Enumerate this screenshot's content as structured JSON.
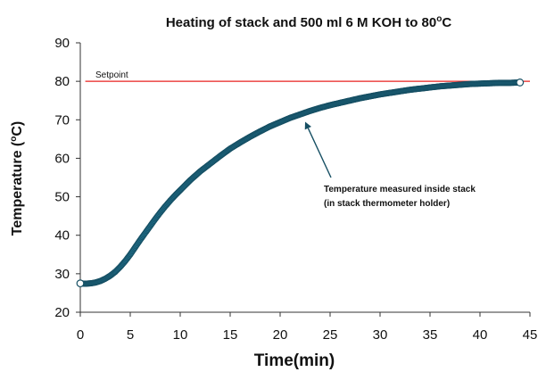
{
  "chart_data": {
    "type": "scatter",
    "title": "Heating of stack and 500 ml 6 M KOH to 80°C",
    "title_parts": {
      "pre": "Heating of stack and 500 ml 6 M KOH to 80",
      "sup": "o",
      "post": "C"
    },
    "xlabel": "Time(min)",
    "ylabel": "Temperature (°C)",
    "ylabel_parts": {
      "pre": "Temperature (",
      "sup": "o",
      "post": "C)"
    },
    "xlim": [
      0,
      45
    ],
    "ylim": [
      20,
      90
    ],
    "xticks": [
      0,
      5,
      10,
      15,
      20,
      25,
      30,
      35,
      40,
      45
    ],
    "yticks": [
      20,
      30,
      40,
      50,
      60,
      70,
      80,
      90
    ],
    "grid": false,
    "colors": {
      "series": "#1f6f8b",
      "series_edge": "#164f63",
      "setpoint": "#e8211f",
      "axis": "#333333"
    },
    "setpoint": {
      "label": "Setpoint",
      "value": 80
    },
    "annotation": {
      "lines": [
        "Temperature measured inside stack",
        " (in stack thermometer holder)"
      ],
      "arrow_target": {
        "x": 22.5,
        "y": 69.5
      }
    },
    "series": [
      {
        "x": [
          0,
          0.5,
          1,
          1.5,
          2,
          2.5,
          3,
          3.5,
          4,
          4.5,
          5,
          5.5,
          6,
          6.5,
          7,
          7.5,
          8,
          8.5,
          9,
          9.5,
          10,
          11,
          12,
          13,
          14,
          15,
          16,
          17,
          18,
          19,
          20,
          21,
          22,
          23,
          24,
          25,
          26,
          27,
          28,
          29,
          30,
          31,
          32,
          33,
          34,
          35,
          36,
          37,
          38,
          39,
          40,
          41,
          42,
          43,
          44
        ],
        "y": [
          27.5,
          27.4,
          27.5,
          27.7,
          28.1,
          28.7,
          29.5,
          30.5,
          31.8,
          33.3,
          35.0,
          36.9,
          38.8,
          40.6,
          42.4,
          44.2,
          45.9,
          47.5,
          49.0,
          50.4,
          51.7,
          54.3,
          56.6,
          58.6,
          60.6,
          62.5,
          64.1,
          65.6,
          67.0,
          68.3,
          69.4,
          70.5,
          71.4,
          72.3,
          73.1,
          73.8,
          74.4,
          75.0,
          75.6,
          76.1,
          76.6,
          77.0,
          77.4,
          77.8,
          78.1,
          78.4,
          78.7,
          78.9,
          79.1,
          79.3,
          79.4,
          79.5,
          79.6,
          79.6,
          79.7
        ]
      }
    ]
  }
}
